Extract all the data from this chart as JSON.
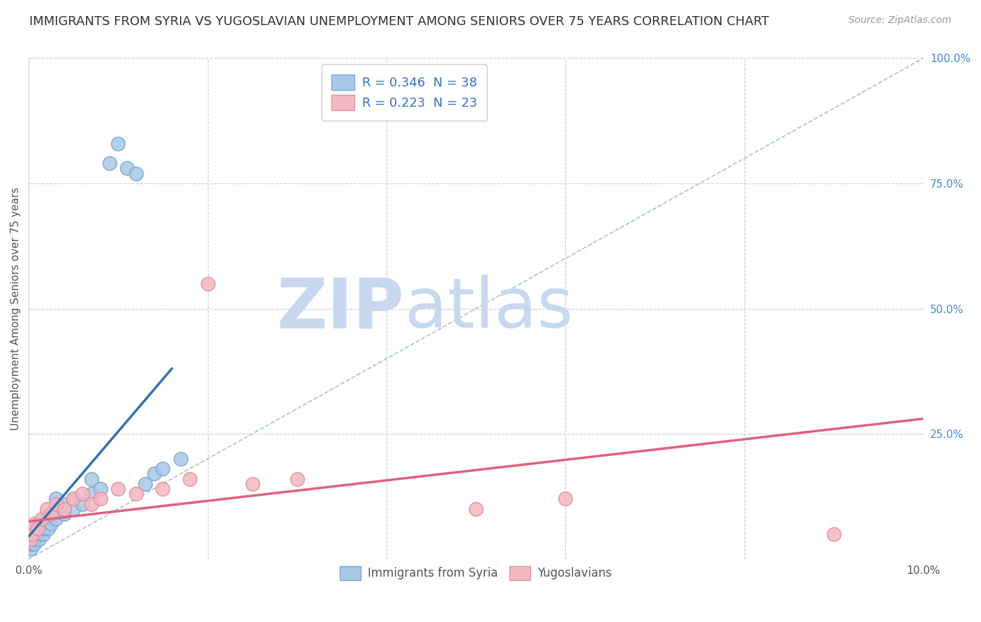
{
  "title": "IMMIGRANTS FROM SYRIA VS YUGOSLAVIAN UNEMPLOYMENT AMONG SENIORS OVER 75 YEARS CORRELATION CHART",
  "source": "Source: ZipAtlas.com",
  "ylabel": "Unemployment Among Seniors over 75 years",
  "legend1_label": "R = 0.346  N = 38",
  "legend2_label": "R = 0.223  N = 23",
  "color_syria_fill": "#a8c8e8",
  "color_syria_edge": "#7aa8cc",
  "color_yugoslavian_fill": "#f4b8c0",
  "color_yugoslavian_edge": "#e090a0",
  "color_syria_line": "#3370b0",
  "color_yugoslavian_line": "#e06080",
  "color_diagonal": "#a0b8d0",
  "color_legend_text": "#3370c0",
  "xlim": [
    0.0,
    0.1
  ],
  "ylim": [
    0.0,
    1.0
  ],
  "syria_x": [
    0.0002,
    0.0003,
    0.0004,
    0.0005,
    0.0006,
    0.0007,
    0.0008,
    0.001,
    0.001,
    0.0012,
    0.0013,
    0.0014,
    0.0015,
    0.0016,
    0.0017,
    0.002,
    0.002,
    0.0022,
    0.0025,
    0.003,
    0.003,
    0.003,
    0.004,
    0.004,
    0.005,
    0.005,
    0.006,
    0.007,
    0.007,
    0.008,
    0.009,
    0.01,
    0.011,
    0.012,
    0.013,
    0.014,
    0.015,
    0.017
  ],
  "syria_y": [
    0.02,
    0.03,
    0.04,
    0.05,
    0.03,
    0.04,
    0.06,
    0.05,
    0.07,
    0.04,
    0.05,
    0.06,
    0.07,
    0.05,
    0.06,
    0.07,
    0.08,
    0.06,
    0.07,
    0.08,
    0.1,
    0.12,
    0.09,
    0.11,
    0.1,
    0.12,
    0.11,
    0.13,
    0.16,
    0.14,
    0.79,
    0.83,
    0.78,
    0.77,
    0.15,
    0.17,
    0.18,
    0.2
  ],
  "yugoslavian_x": [
    0.0002,
    0.0004,
    0.0006,
    0.001,
    0.0015,
    0.002,
    0.0025,
    0.003,
    0.004,
    0.005,
    0.006,
    0.007,
    0.008,
    0.01,
    0.012,
    0.015,
    0.018,
    0.02,
    0.025,
    0.03,
    0.05,
    0.06,
    0.09
  ],
  "yugoslavian_y": [
    0.04,
    0.05,
    0.07,
    0.06,
    0.08,
    0.1,
    0.09,
    0.11,
    0.1,
    0.12,
    0.13,
    0.11,
    0.12,
    0.14,
    0.13,
    0.14,
    0.16,
    0.55,
    0.15,
    0.16,
    0.1,
    0.12,
    0.05
  ],
  "syria_trend_x": [
    0.0,
    0.016
  ],
  "syria_trend_y": [
    0.045,
    0.38
  ],
  "yugoslavian_trend_x": [
    0.0,
    0.1
  ],
  "yugoslavian_trend_y": [
    0.075,
    0.28
  ],
  "background_color": "#ffffff",
  "grid_color": "#cccccc",
  "title_fontsize": 13,
  "axis_fontsize": 11,
  "source_fontsize": 10,
  "legend_fontsize": 13,
  "watermark_zip": "ZIP",
  "watermark_atlas": "atlas",
  "watermark_color_zip": "#c8d8ee",
  "watermark_color_atlas": "#c8d8ee",
  "watermark_fontsize": 72
}
